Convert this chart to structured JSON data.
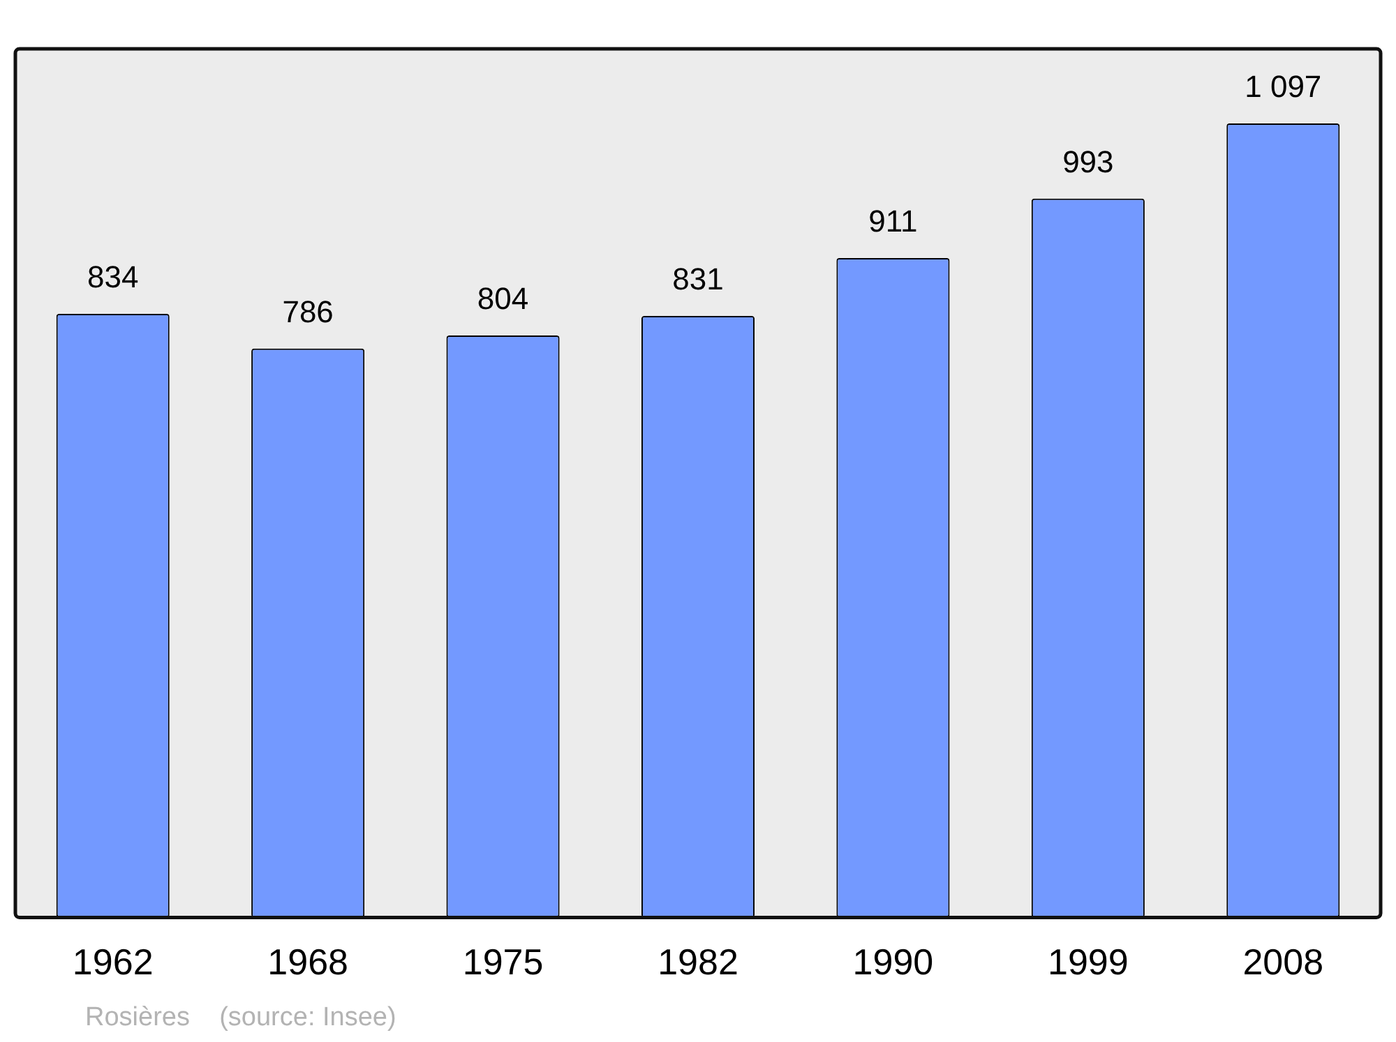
{
  "chart_data": {
    "type": "bar",
    "categories": [
      "1962",
      "1968",
      "1975",
      "1982",
      "1990",
      "1999",
      "2008"
    ],
    "values": [
      834,
      786,
      804,
      831,
      911,
      993,
      1097
    ],
    "value_labels": [
      "834",
      "786",
      "804",
      "831",
      "911",
      "993",
      "1 097"
    ],
    "color": "#7399ff",
    "annotations": [
      "Rosières    (source: Insee)"
    ],
    "grid": false,
    "legend": false
  }
}
